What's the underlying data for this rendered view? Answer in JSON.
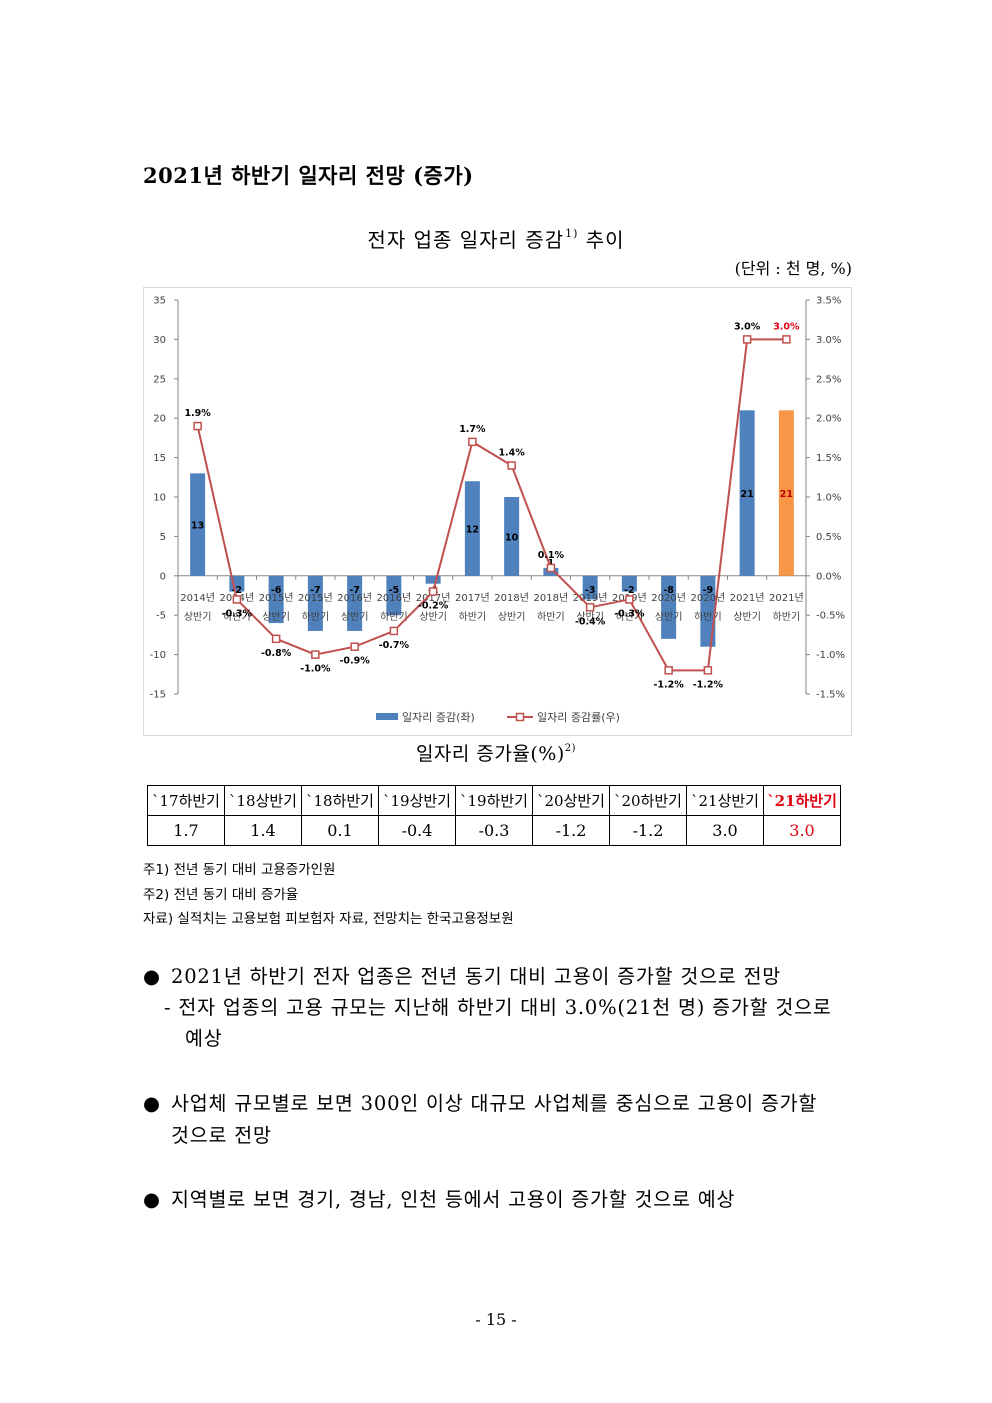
{
  "section_title": "2021년 하반기 일자리 전망 (증가)",
  "chart_title": {
    "text": "전자 업종 일자리 증감",
    "sup": "1)",
    "suffix": " 추이"
  },
  "unit_note": "(단위 : 천 명, %)",
  "chart_data": {
    "type": "bar",
    "categories": [
      [
        "2014년",
        "상반기"
      ],
      [
        "2014년",
        "하반기"
      ],
      [
        "2015년",
        "상반기"
      ],
      [
        "2015년",
        "하반기"
      ],
      [
        "2016년",
        "상반기"
      ],
      [
        "2016년",
        "하반기"
      ],
      [
        "2017년",
        "상반기"
      ],
      [
        "2017년",
        "하반기"
      ],
      [
        "2018년",
        "상반기"
      ],
      [
        "2018년",
        "하반기"
      ],
      [
        "2019년",
        "상반기"
      ],
      [
        "2019년",
        "하반기"
      ],
      [
        "2020년",
        "상반기"
      ],
      [
        "2020년",
        "하반기"
      ],
      [
        "2021년",
        "상반기"
      ],
      [
        "2021년",
        "하반기"
      ]
    ],
    "series": [
      {
        "name": "일자리 증감(좌)",
        "type": "bar",
        "axis": "left",
        "values": [
          13,
          -2,
          -6,
          -7,
          -7,
          -5,
          -1,
          12,
          10,
          1,
          -3,
          -2,
          -8,
          -9,
          21,
          21
        ],
        "labels": [
          "13",
          "-2",
          "-6",
          "-7",
          "-7",
          "-5",
          "-1",
          "12",
          "10",
          "1",
          "-3",
          "-2",
          "-8",
          "-9",
          "21",
          "21"
        ],
        "color": "#4f81bd",
        "highlight_color": "#f79646"
      },
      {
        "name": "일자리 증감률(우)",
        "type": "line",
        "axis": "right",
        "values": [
          1.9,
          -0.3,
          -0.8,
          -1.0,
          -0.9,
          -0.7,
          -0.2,
          1.7,
          1.4,
          0.1,
          -0.4,
          -0.3,
          -1.2,
          -1.2,
          3.0,
          3.0
        ],
        "labels": [
          "1.9%",
          "-0.3%",
          "-0.8%",
          "-1.0%",
          "-0.9%",
          "-0.7%",
          "-0.2%",
          "1.7%",
          "1.4%",
          "0.1%",
          "-0.4%",
          "-0.3%",
          "-1.2%",
          "-1.2%",
          "3.0%",
          "3.0%"
        ],
        "color": "#c0504d",
        "highlight_label_color": "#e0000f"
      }
    ],
    "y_left": {
      "min": -15,
      "max": 35,
      "ticks": [
        "35",
        "30",
        "25",
        "20",
        "15",
        "10",
        "5",
        "0",
        "-5",
        "-10",
        "-15"
      ]
    },
    "y_right": {
      "min": -1.5,
      "max": 3.5,
      "ticks": [
        "3.5%",
        "3.0%",
        "2.5%",
        "2.0%",
        "1.5%",
        "1.0%",
        "0.5%",
        "0.0%",
        "-0.5%",
        "-1.0%",
        "-1.5%"
      ]
    },
    "legend_position": "bottom",
    "grid": false
  },
  "table_title": {
    "text": "일자리 증가율(%)",
    "sup": "2)"
  },
  "rate_table": {
    "headers": [
      "`17하반기",
      "`18상반기",
      "`18하반기",
      "`19상반기",
      "`19하반기",
      "`20상반기",
      "`20하반기",
      "`21상반기",
      "`21하반기"
    ],
    "values": [
      "1.7",
      "1.4",
      "0.1",
      "-0.4",
      "-0.3",
      "-1.2",
      "-1.2",
      "3.0",
      "3.0"
    ]
  },
  "notes": [
    "주1) 전년 동기 대비 고용증가인원",
    "주2) 전년 동기 대비 증가율",
    "자료) 실적치는 고용보험 피보험자 자료, 전망치는 한국고용정보원"
  ],
  "bullets": {
    "b1": "2021년 하반기 전자 업종은 전년 동기 대비 고용이 증가할 것으로 전망",
    "b1_sub1": "- 전자 업종의 고용 규모는 지난해 하반기 대비 3.0%(21천 명) 증가할 것으로",
    "b1_sub2": "예상",
    "b2_line1": "사업체 규모별로 보면 300인 이상 대규모 사업체를 중심으로 고용이 증가할",
    "b2_line2": "것으로 전망",
    "b3": "지역별로 보면 경기, 경남, 인천 등에서 고용이 증가할 것으로 예상"
  },
  "bullet_symbol": "●",
  "page_number": "- 15 -"
}
